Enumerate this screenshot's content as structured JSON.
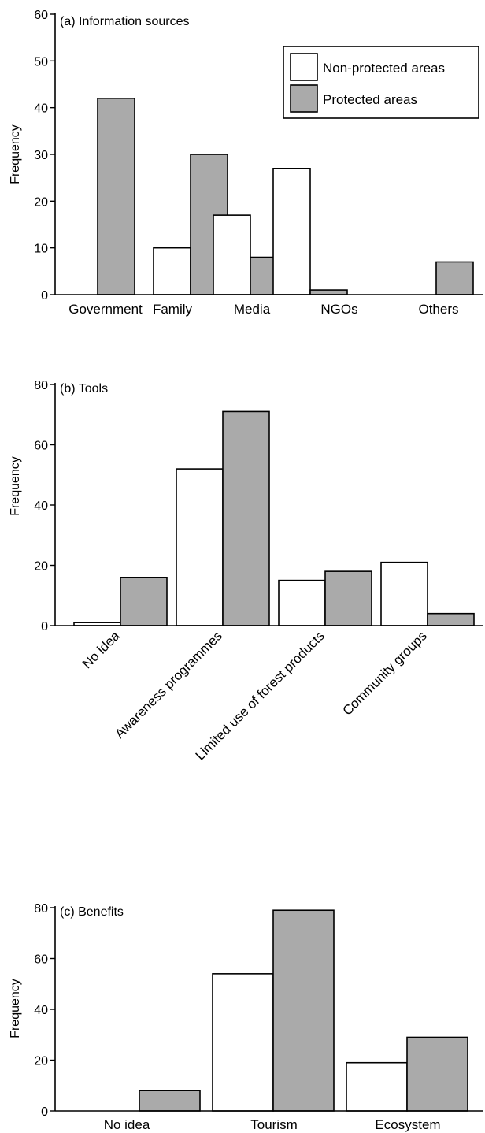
{
  "colors": {
    "non_protected": "#ffffff",
    "protected": "#aaaaaa",
    "stroke": "#000000"
  },
  "chart_data": [
    {
      "type": "bar",
      "title": "(a) Information sources",
      "ylabel": "Frequency",
      "ylim": [
        0,
        60
      ],
      "yticks": [
        0,
        10,
        20,
        30,
        40,
        50,
        60
      ],
      "categories": [
        "Government",
        "Family",
        "Media",
        "NGOs",
        "Others"
      ],
      "series": [
        {
          "name": "Non-protected areas",
          "values": [
            0,
            10,
            17,
            27,
            0
          ]
        },
        {
          "name": "Protected areas",
          "values": [
            42,
            30,
            8,
            1,
            7
          ]
        }
      ],
      "legend": "top-right",
      "grid": false
    },
    {
      "type": "bar",
      "title": "(b) Tools",
      "ylabel": "Frequency",
      "ylim": [
        0,
        80
      ],
      "yticks": [
        0,
        20,
        40,
        60,
        80
      ],
      "categories": [
        "No idea",
        "Awareness programmes",
        "Limited use of forest products",
        "Community groups"
      ],
      "series": [
        {
          "name": "Non-protected areas",
          "values": [
            1,
            52,
            15,
            21
          ]
        },
        {
          "name": "Protected areas",
          "values": [
            16,
            71,
            18,
            4
          ]
        }
      ],
      "grid": false
    },
    {
      "type": "bar",
      "title": "(c) Benefits",
      "ylabel": "Frequency",
      "ylim": [
        0,
        80
      ],
      "yticks": [
        0,
        20,
        40,
        60,
        80
      ],
      "categories": [
        "No idea",
        "Tourism",
        "Ecosystem"
      ],
      "series": [
        {
          "name": "Non-protected areas",
          "values": [
            0,
            54,
            19
          ]
        },
        {
          "name": "Protected areas",
          "values": [
            8,
            79,
            29
          ]
        }
      ],
      "grid": false
    }
  ]
}
